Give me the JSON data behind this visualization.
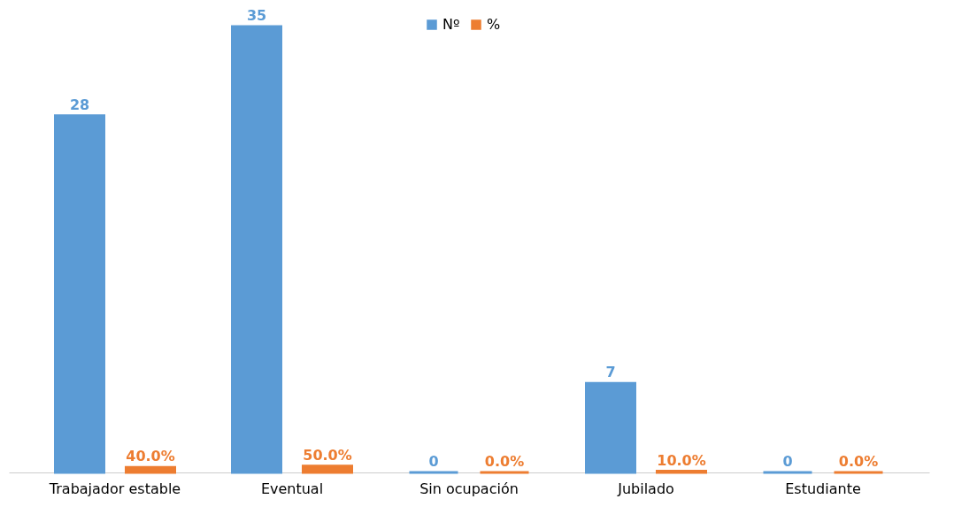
{
  "chart_data": {
    "type": "bar",
    "categories": [
      "Trabajador estable",
      "Eventual",
      "Sin ocupación",
      "Jubilado",
      "Estudiante"
    ],
    "series": [
      {
        "name": "Nº",
        "color": "#5b9bd5",
        "values": [
          28,
          35,
          0,
          7,
          0
        ],
        "value_labels": [
          "28",
          "35",
          "0",
          "7",
          "0"
        ]
      },
      {
        "name": "%",
        "color": "#ed7d31",
        "values": [
          0.4,
          0.5,
          0,
          0.1,
          0
        ],
        "value_labels": [
          "40.0%",
          "50.0%",
          "0.0%",
          "10.0%",
          "0.0%"
        ]
      }
    ],
    "legend": "top",
    "grid": false,
    "tick_labels": "x"
  }
}
